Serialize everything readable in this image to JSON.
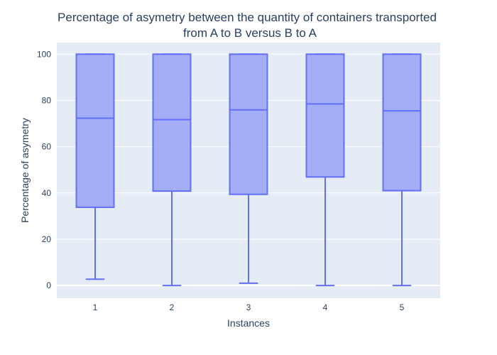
{
  "chart_data": {
    "type": "box",
    "title_line1": "Percentage of asymetry between the quantity of containers transported",
    "title_line2": "from A to B versus B to A",
    "xlabel": "Instances",
    "ylabel": "Percentage of asymetry",
    "categories": [
      "1",
      "2",
      "3",
      "4",
      "5"
    ],
    "ylim": [
      -5.5,
      105
    ],
    "yticks": [
      0,
      20,
      40,
      60,
      80,
      100
    ],
    "grid": true,
    "colors": {
      "plot_bg": "#e5ecf6",
      "box_fill": "#a3aef6",
      "box_line": "#636efa",
      "grid": "#ffffff",
      "text": "#2a3f5f"
    },
    "boxes": [
      {
        "instance": "1",
        "min": 2.7,
        "q1": 33.8,
        "median": 72.3,
        "q3": 100,
        "max": 100
      },
      {
        "instance": "2",
        "min": 0,
        "q1": 40.8,
        "median": 71.7,
        "q3": 100,
        "max": 100
      },
      {
        "instance": "3",
        "min": 1.0,
        "q1": 39.4,
        "median": 75.9,
        "q3": 100,
        "max": 100
      },
      {
        "instance": "4",
        "min": 0,
        "q1": 46.9,
        "median": 78.5,
        "q3": 100,
        "max": 100
      },
      {
        "instance": "5",
        "min": 0,
        "q1": 41.0,
        "median": 75.5,
        "q3": 100,
        "max": 100
      }
    ]
  }
}
